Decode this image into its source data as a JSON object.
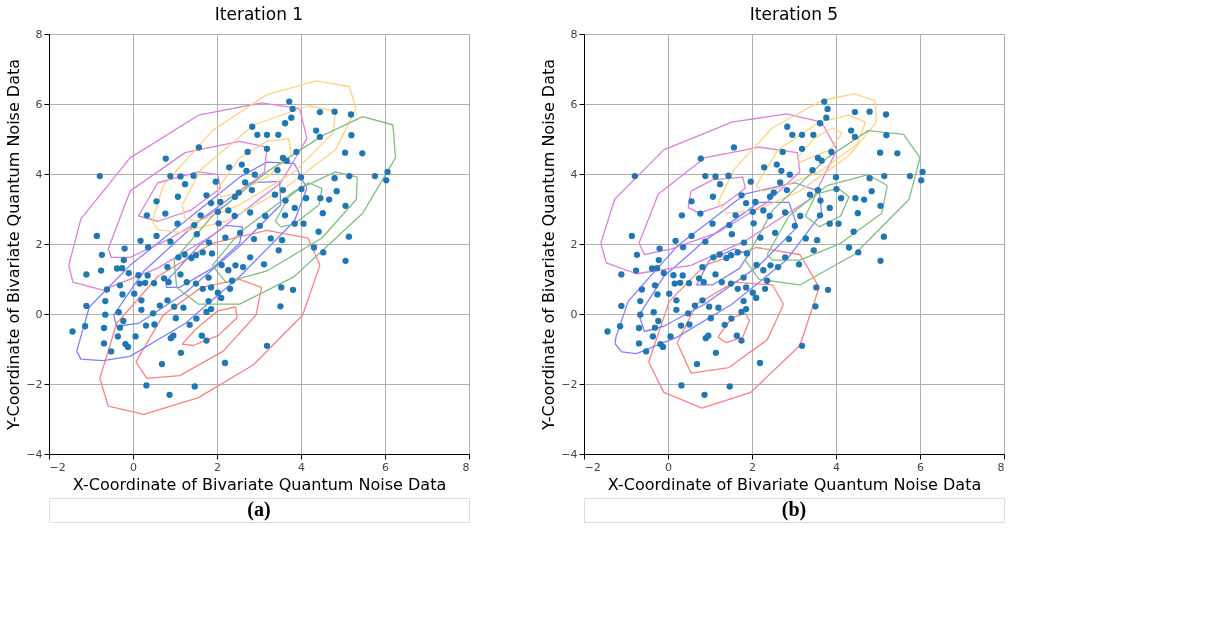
{
  "chart_data": [
    {
      "type": "line",
      "title": "Iteration 1",
      "xlabel": "X-Coordinate of Bivariate Quantum Noise Data",
      "ylabel": "Y-Coordinate of Bivariate Quantum Noise Data",
      "xlim": [
        -2,
        8
      ],
      "ylim": [
        -4,
        8
      ],
      "xticks": [
        -2,
        0,
        2,
        4,
        6,
        8
      ],
      "yticks": [
        -4,
        -2,
        0,
        2,
        4,
        6,
        8
      ],
      "grid": true,
      "annotations": [
        "(a)"
      ],
      "series": [
        {
          "color": "#ff8080",
          "x": [
            -0.79,
            -0.39,
            0.59,
            1.89,
            3.19,
            4.17,
            4.45
          ],
          "values": [
            -1.84,
            -0.27,
            1.07,
            2.02,
            2.39,
            2.17,
            1.39
          ]
        },
        {
          "color": "#ff8080",
          "x": [
            -0.79,
            -0.59,
            0.26,
            1.56,
            2.87,
            4.04,
            4.45
          ],
          "values": [
            -1.84,
            -2.63,
            -2.87,
            -2.39,
            -1.45,
            -0.03,
            1.39
          ]
        },
        {
          "color": "#ff8080",
          "x": [
            0.07,
            0.72,
            1.63,
            2.54,
            3.06
          ],
          "values": [
            -1.37,
            -0.03,
            0.76,
            0.99,
            0.76
          ]
        },
        {
          "color": "#ff8080",
          "x": [
            0.07,
            0.33,
            1.11,
            2.15,
            2.93,
            3.06
          ],
          "values": [
            -1.37,
            -1.84,
            -1.76,
            -1.06,
            -0.03,
            0.76
          ]
        },
        {
          "color": "#ff8080",
          "x": [
            1.17,
            1.5,
            2.02,
            2.44,
            2.48
          ],
          "values": [
            -0.86,
            -0.43,
            0.09,
            0.2,
            -0.11
          ]
        },
        {
          "color": "#ff8080",
          "x": [
            1.17,
            1.43,
            2.02,
            2.48
          ],
          "values": [
            -0.86,
            -0.9,
            -0.62,
            -0.11
          ]
        },
        {
          "color": "#8080ff",
          "x": [
            -1.34,
            -1.04,
            -0.07,
            1.24,
            2.54,
            3.19,
            3.84,
            4.14
          ],
          "values": [
            -1.06,
            0.2,
            1.39,
            2.65,
            3.91,
            4.34,
            4.3,
            3.59
          ]
        },
        {
          "color": "#8080ff",
          "x": [
            -1.34,
            -1.24,
            -0.72,
            -0.07,
            1.24,
            2.54,
            3.84,
            4.14
          ],
          "values": [
            -1.06,
            -1.29,
            -1.33,
            -1.21,
            -0.27,
            1.07,
            2.65,
            3.59
          ]
        },
        {
          "color": "#8080ff",
          "x": [
            -0.46,
            0.26,
            1.56,
            2.8,
            3.49,
            3.52
          ],
          "values": [
            -0.03,
            1.23,
            2.65,
            3.75,
            3.79,
            3.12
          ]
        },
        {
          "color": "#8080ff",
          "x": [
            -0.46,
            -0.39,
            0.13,
            1.24,
            2.54,
            3.52
          ],
          "values": [
            -0.03,
            -0.35,
            -0.27,
            0.6,
            1.94,
            3.12
          ]
        },
        {
          "color": "#8080ff",
          "x": [
            0.78,
            1.56,
            2.21,
            2.61
          ],
          "values": [
            0.91,
            1.94,
            2.53,
            2.49
          ]
        },
        {
          "color": "#8080ff",
          "x": [
            0.78,
            0.8,
            1.11,
            1.89,
            2.54,
            2.61
          ],
          "values": [
            0.91,
            0.76,
            0.76,
            1.31,
            2.02,
            2.49
          ]
        },
        {
          "color": "#dd80dd",
          "x": [
            -1.53,
            -1.24,
            -0.07,
            1.56,
            3.06,
            3.97,
            4.14
          ],
          "values": [
            1.39,
            2.72,
            4.46,
            5.68,
            6.03,
            5.87,
            5.01
          ]
        },
        {
          "color": "#dd80dd",
          "x": [
            -1.53,
            -1.43,
            -0.72,
            0.59,
            1.89,
            3.52,
            4.14
          ],
          "values": [
            1.39,
            0.91,
            0.68,
            1.31,
            2.25,
            3.75,
            5.01
          ]
        },
        {
          "color": "#dd80dd",
          "x": [
            -0.59,
            -0.07,
            1.24,
            2.54,
            3.19
          ],
          "values": [
            1.86,
            3.51,
            4.61,
            4.93,
            4.77
          ]
        },
        {
          "color": "#dd80dd",
          "x": [
            -0.59,
            -0.52,
            -0.07,
            0.91,
            2.21,
            3.13,
            3.19
          ],
          "values": [
            1.86,
            1.62,
            1.62,
            2.17,
            3.12,
            4.06,
            4.77
          ]
        },
        {
          "color": "#dd80dd",
          "x": [
            0.13,
            0.59,
            1.56,
            2.02,
            2.08
          ],
          "values": [
            2.8,
            3.75,
            4.06,
            3.98,
            3.59
          ]
        },
        {
          "color": "#dd80dd",
          "x": [
            0.13,
            0.59,
            1.37,
            2.08
          ],
          "values": [
            2.8,
            2.65,
            2.96,
            3.59
          ]
        },
        {
          "color": "#ffd280",
          "x": [
            0.46,
            0.72,
            1.89,
            3.19,
            4.36,
            5.15,
            5.31
          ],
          "values": [
            2.65,
            3.67,
            5.24,
            6.27,
            6.66,
            6.5,
            5.87
          ]
        },
        {
          "color": "#ffd280",
          "x": [
            0.46,
            0.59,
            1.11,
            2.21,
            3.52,
            4.82,
            5.31
          ],
          "values": [
            2.65,
            2.41,
            2.33,
            2.65,
            3.51,
            4.69,
            5.87
          ]
        },
        {
          "color": "#ffd280",
          "x": [
            1.17,
            1.63,
            2.87,
            4.17,
            4.82
          ],
          "values": [
            3.12,
            4.14,
            5.4,
            5.95,
            5.8
          ]
        },
        {
          "color": "#ffd280",
          "x": [
            1.17,
            1.24,
            1.56,
            2.54,
            3.84,
            4.76,
            4.82
          ],
          "values": [
            3.12,
            2.72,
            2.65,
            3.12,
            4.06,
            5.17,
            5.8
          ]
        },
        {
          "color": "#ffd280",
          "x": [
            2.02,
            2.54,
            3.19,
            3.71,
            3.77
          ],
          "values": [
            3.59,
            4.46,
            4.93,
            5.01,
            4.54
          ]
        },
        {
          "color": "#ffd280",
          "x": [
            2.02,
            2.08,
            2.41,
            3.19,
            3.77
          ],
          "values": [
            3.59,
            3.35,
            3.43,
            3.91,
            4.54
          ]
        },
        {
          "color": "#80bf80",
          "x": [
            0.98,
            1.89,
            3.19,
            4.5,
            5.47,
            6.19,
            6.25
          ],
          "values": [
            1.54,
            2.8,
            4.06,
            5.09,
            5.64,
            5.4,
            4.46
          ]
        },
        {
          "color": "#80bf80",
          "x": [
            0.98,
            1.04,
            1.56,
            2.54,
            3.84,
            5.47,
            6.25
          ],
          "values": [
            1.54,
            0.76,
            0.28,
            0.28,
            1.07,
            2.88,
            4.46
          ]
        },
        {
          "color": "#80bf80",
          "x": [
            1.89,
            2.54,
            3.84,
            4.82,
            5.34
          ],
          "values": [
            1.39,
            2.33,
            3.51,
            4.06,
            3.91
          ]
        },
        {
          "color": "#80bf80",
          "x": [
            1.89,
            2.21,
            3.19,
            4.5,
            5.32,
            5.34
          ],
          "values": [
            1.39,
            0.91,
            1.23,
            2.17,
            3.28,
            3.91
          ]
        },
        {
          "color": "#80bf80",
          "x": [
            3.39,
            3.71,
            4.17,
            4.5
          ],
          "values": [
            2.65,
            3.35,
            3.75,
            3.59
          ]
        },
        {
          "color": "#80bf80",
          "x": [
            3.39,
            3.52,
            3.84,
            4.43,
            4.5
          ],
          "values": [
            2.65,
            2.49,
            2.57,
            3.12,
            3.59
          ]
        },
        {
          "type": "scatter",
          "color": "#1f77b4",
          "x": [
            3.72,
            3.8,
            3.77,
            3.62,
            4.45,
            4.8,
            5.19,
            2.84,
            2.96,
            3.19,
            3.46,
            4.36,
            4.45,
            5.2,
            1.57,
            0.78,
            2.73,
            3.19,
            3.89,
            5.05,
            5.46,
            -0.79,
            0.89,
            1.13,
            1.44,
            1.24,
            1.97,
            2.29,
            2.59,
            2.7,
            2.9,
            3.44,
            3.57,
            3.66,
            4.0,
            4.8,
            5.15,
            5.76,
            6.06,
            6.03,
            1.07,
            0.56,
            1.75,
            2.67,
            2.83,
            2.43,
            2.52,
            3.57,
            3.63,
            4.01,
            4.12,
            4.46,
            4.67,
            4.85,
            5.06,
            1.86,
            2.08,
            0.33,
            0.77,
            1.61,
            2.02,
            2.27,
            2.79,
            3.15,
            3.62,
            3.85,
            4.52,
            1.06,
            1.46,
            2.04,
            2.42,
            3.02,
            3.38,
            3.85,
            4.06,
            4.42,
            5.14,
            -0.86,
            0.18,
            0.89,
            0.56,
            1.52,
            1.81,
            2.2,
            2.55,
            2.88,
            3.28,
            3.55,
            4.31,
            4.53,
            5.06,
            -0.74,
            -0.2,
            0.36,
            -0.22,
            -0.76,
            -1.11,
            -0.38,
            -0.26,
            -0.1,
            0.13,
            0.35,
            0.82,
            1.08,
            1.23,
            1.39,
            1.5,
            1.66,
            1.88,
            2.11,
            2.27,
            2.44,
            2.62,
            2.79,
            3.12,
            3.47,
            -0.62,
            -0.31,
            0.16,
            0.29,
            0.5,
            0.74,
            0.85,
            1.13,
            1.28,
            1.5,
            1.8,
            1.66,
            1.86,
            2.31,
            2.36,
            3.53,
            3.81,
            -0.66,
            -0.25,
            0.03,
            0.2,
            0.64,
            0.82,
            0.98,
            1.2,
            1.8,
            2.02,
            2.1,
            -1.11,
            -0.66,
            -0.34,
            0.2,
            0.48,
            1.02,
            1.51,
            1.75,
            1.86,
            3.51,
            -1.14,
            -0.69,
            -0.31,
            -0.23,
            0.31,
            0.51,
            1.35,
            -1.44,
            -0.36,
            0.06,
            0.9,
            0.96,
            1.64,
            1.75,
            -0.69,
            -0.52,
            -0.18,
            -0.12,
            1.14,
            3.19,
            0.69,
            2.19,
            0.32,
            1.47,
            0.87
          ],
          "values": [
            6.07,
            5.86,
            5.61,
            5.45,
            5.77,
            5.78,
            5.7,
            5.35,
            5.12,
            5.12,
            5.12,
            5.24,
            5.06,
            5.11,
            4.76,
            4.44,
            4.63,
            4.72,
            4.63,
            4.61,
            4.59,
            3.94,
            3.94,
            3.93,
            3.95,
            3.71,
            3.78,
            4.19,
            4.27,
            4.09,
            3.98,
            4.11,
            4.46,
            4.38,
            3.91,
            3.88,
            3.94,
            3.94,
            4.06,
            3.82,
            3.35,
            3.22,
            3.39,
            3.76,
            3.54,
            3.35,
            3.47,
            3.54,
            3.24,
            3.57,
            3.31,
            3.31,
            3.27,
            3.51,
            3.09,
            3.17,
            3.2,
            2.82,
            2.87,
            2.82,
            2.92,
            2.96,
            2.9,
            2.8,
            2.82,
            3.03,
            2.88,
            2.58,
            2.54,
            2.59,
            2.8,
            2.52,
            3.41,
            2.58,
            2.58,
            2.35,
            2.21,
            2.23,
            2.09,
            2.07,
            2.23,
            2.28,
            2.04,
            2.18,
            2.32,
            2.14,
            2.16,
            2.11,
            1.9,
            1.76,
            1.52,
            1.69,
            1.87,
            1.91,
            1.54,
            1.24,
            1.13,
            1.3,
            1.31,
            1.17,
            1.11,
            1.1,
            1.34,
            1.62,
            1.7,
            1.6,
            1.68,
            1.76,
            1.73,
            1.4,
            1.25,
            1.39,
            1.34,
            1.62,
            1.42,
            1.82,
            0.7,
            0.82,
            0.87,
            0.89,
            0.88,
            1.02,
            0.91,
            1.13,
            0.91,
            0.87,
            1.04,
            0.72,
            0.76,
            0.72,
            0.95,
            0.76,
            0.69,
            0.37,
            0.56,
            0.58,
            0.39,
            0.24,
            0.39,
            0.21,
            0.18,
            0.37,
            0.61,
            0.46,
            0.23,
            -0.02,
            0.05,
            0.12,
            0.02,
            -0.12,
            -0.13,
            0.06,
            0.14,
            0.22,
            -0.35,
            -0.4,
            -0.39,
            -0.2,
            -0.33,
            -0.3,
            -0.31,
            -0.5,
            -0.64,
            -0.64,
            -0.69,
            -0.62,
            -0.62,
            -0.76,
            -0.84,
            -1.07,
            -0.86,
            -0.94,
            -1.11,
            -0.91,
            -1.43,
            -1.4,
            -2.04,
            -2.07,
            -2.31
          ]
        }
      ]
    },
    {
      "type": "line",
      "title": "Iteration 5",
      "xlabel": "X-Coordinate of Bivariate Quantum Noise Data",
      "ylabel": "Y-Coordinate of Bivariate Quantum Noise Data",
      "xlim": [
        -2,
        8
      ],
      "ylim": [
        -4,
        8
      ],
      "xticks": [
        -2,
        0,
        2,
        4,
        6,
        8
      ],
      "yticks": [
        -4,
        -2,
        0,
        2,
        4,
        6,
        8
      ],
      "grid": true,
      "annotations": [
        "(b)"
      ],
      "series": [
        {
          "color": "#ff8080",
          "x": [
            -0.46,
            0.03,
            0.87,
            2.1,
            3.14,
            3.6
          ],
          "values": [
            -1.37,
            0.36,
            1.39,
            1.9,
            1.7,
            0.76
          ]
        },
        {
          "color": "#ff8080",
          "x": [
            -0.46,
            -0.1,
            0.81,
            1.97,
            3.14,
            3.6
          ],
          "values": [
            -1.37,
            -2.24,
            -2.69,
            -2.24,
            -0.9,
            0.76
          ]
        },
        {
          "color": "#ff8080",
          "x": [
            0.22,
            0.68,
            1.58,
            2.49,
            2.75
          ],
          "values": [
            -0.82,
            0.28,
            0.91,
            0.83,
            0.28
          ]
        },
        {
          "color": "#ff8080",
          "x": [
            0.22,
            0.55,
            1.45,
            2.36,
            2.75
          ],
          "values": [
            -0.82,
            -1.69,
            -1.53,
            -0.74,
            0.28
          ]
        },
        {
          "color": "#ff8080",
          "x": [
            1.19,
            1.52,
            1.84,
            1.94
          ],
          "values": [
            -0.66,
            -0.11,
            0.02,
            -0.19
          ]
        },
        {
          "color": "#ff8080",
          "x": [
            1.19,
            1.39,
            1.78,
            1.94
          ],
          "values": [
            -0.66,
            -0.82,
            -0.66,
            -0.19
          ]
        },
        {
          "color": "#8080ff",
          "x": [
            -1.26,
            -1.24,
            -0.95,
            0.22,
            1.84,
            3.01,
            3.6,
            3.66
          ],
          "values": [
            -0.85,
            -0.66,
            0.36,
            1.94,
            3.43,
            3.75,
            3.51,
            2.88
          ]
        },
        {
          "color": "#8080ff",
          "x": [
            -1.26,
            -1.1,
            -0.75,
            0.22,
            1.52,
            2.82,
            3.66
          ],
          "values": [
            -0.85,
            -1.08,
            -1.13,
            -0.66,
            0.28,
            1.54,
            2.88
          ]
        },
        {
          "color": "#8080ff",
          "x": [
            -0.69,
            -0.1,
            0.87,
            2.17,
            2.88,
            3.08
          ],
          "values": [
            -0.03,
            1.07,
            2.09,
            3.19,
            3.19,
            2.49
          ]
        },
        {
          "color": "#8080ff",
          "x": [
            -0.69,
            -0.56,
            -0.1,
            0.87,
            2.17,
            3.08
          ],
          "values": [
            -0.03,
            -0.5,
            -0.35,
            0.28,
            1.39,
            2.49
          ]
        },
        {
          "color": "#8080ff",
          "x": [
            0.68,
            0.99,
            1.58,
            1.91
          ],
          "values": [
            0.83,
            1.54,
            1.86,
            1.7
          ]
        },
        {
          "color": "#8080ff",
          "x": [
            0.68,
            1.06,
            1.71,
            1.91
          ],
          "values": [
            0.83,
            0.83,
            1.31,
            1.7
          ]
        },
        {
          "color": "#dd80dd",
          "x": [
            -1.6,
            -1.27,
            -0.1,
            1.52,
            2.82,
            3.66,
            4.02
          ],
          "values": [
            2.02,
            3.28,
            4.69,
            5.48,
            5.72,
            5.48,
            4.69
          ]
        },
        {
          "color": "#dd80dd",
          "x": [
            -1.6,
            -1.47,
            -0.75,
            0.55,
            1.84,
            3.47,
            4.02
          ],
          "values": [
            2.02,
            1.46,
            1.15,
            1.39,
            2.09,
            3.35,
            4.69
          ]
        },
        {
          "color": "#dd80dd",
          "x": [
            -0.69,
            -0.23,
            0.87,
            2.17,
            3.08,
            3.14
          ],
          "values": [
            2.02,
            3.43,
            4.46,
            4.77,
            4.61,
            4.06
          ]
        },
        {
          "color": "#dd80dd",
          "x": [
            -0.69,
            -0.56,
            0.09,
            1.19,
            2.36,
            3.14
          ],
          "values": [
            2.02,
            1.7,
            1.86,
            2.33,
            3.19,
            4.06
          ]
        },
        {
          "color": "#dd80dd",
          "x": [
            0.48,
            0.55,
            1.06,
            1.78,
            1.84
          ],
          "values": [
            3.04,
            3.51,
            3.83,
            3.91,
            3.59
          ]
        },
        {
          "color": "#dd80dd",
          "x": [
            0.48,
            0.74,
            1.32,
            1.84
          ],
          "values": [
            3.04,
            2.88,
            3.12,
            3.59
          ]
        },
        {
          "color": "#ffd280",
          "x": [
            1.19,
            1.58,
            2.49,
            3.66,
            4.44,
            4.93,
            4.96
          ],
          "values": [
            3.19,
            4.14,
            5.32,
            6.1,
            6.29,
            6.1,
            5.48
          ]
        },
        {
          "color": "#ffd280",
          "x": [
            1.19,
            1.39,
            2.1,
            3.14,
            4.31,
            4.96
          ],
          "values": [
            3.19,
            2.88,
            2.96,
            3.51,
            4.53,
            5.48
          ]
        },
        {
          "color": "#ffd280",
          "x": [
            2.1,
            2.62,
            3.6,
            4.31,
            4.7
          ],
          "values": [
            3.67,
            4.69,
            5.48,
            5.68,
            5.48
          ]
        },
        {
          "color": "#ffd280",
          "x": [
            2.1,
            2.23,
            2.62,
            3.6,
            4.5,
            4.7
          ],
          "values": [
            3.67,
            3.51,
            3.59,
            4.06,
            4.85,
            5.48
          ]
        },
        {
          "color": "#ffd280",
          "x": [
            3.08,
            3.47,
            3.92,
            4.14
          ],
          "values": [
            4.46,
            5.01,
            5.32,
            5.17
          ]
        },
        {
          "color": "#ffd280",
          "x": [
            3.08,
            3.14,
            3.86,
            4.14
          ],
          "values": [
            4.46,
            4.34,
            4.69,
            5.17
          ]
        },
        {
          "color": "#80bf80",
          "x": [
            1.84,
            2.49,
            3.79,
            4.77,
            5.61,
            6.0
          ],
          "values": [
            1.54,
            2.96,
            4.46,
            5.24,
            5.13,
            4.46
          ]
        },
        {
          "color": "#80bf80",
          "x": [
            1.84,
            2.17,
            3.14,
            4.44,
            5.74,
            6.0
          ],
          "values": [
            1.54,
            0.99,
            0.83,
            1.7,
            3.28,
            4.46
          ]
        },
        {
          "color": "#80bf80",
          "x": [
            2.36,
            2.88,
            3.79,
            4.77,
            5.22
          ],
          "values": [
            1.7,
            2.8,
            3.67,
            3.98,
            3.67
          ]
        },
        {
          "color": "#80bf80",
          "x": [
            2.36,
            2.49,
            3.14,
            4.11,
            5.09,
            5.22
          ],
          "values": [
            1.7,
            1.54,
            1.54,
            2.02,
            2.88,
            3.67
          ]
        },
        {
          "color": "#80bf80",
          "x": [
            3.27,
            3.53,
            4.05,
            4.31
          ],
          "values": [
            2.8,
            3.43,
            3.59,
            3.35
          ]
        },
        {
          "color": "#80bf80",
          "x": [
            3.27,
            3.6,
            4.11,
            4.31
          ],
          "values": [
            2.8,
            2.49,
            2.8,
            3.35
          ]
        },
        {
          "type": "scatter",
          "color": "#1f77b4",
          "x": [
            3.72,
            3.8,
            3.77,
            3.62,
            4.45,
            4.8,
            5.19,
            2.84,
            2.96,
            3.19,
            3.46,
            4.36,
            4.45,
            5.2,
            1.57,
            0.78,
            2.73,
            3.19,
            3.89,
            5.05,
            5.46,
            -0.79,
            0.89,
            1.13,
            1.44,
            1.24,
            1.97,
            2.29,
            2.59,
            2.7,
            2.9,
            3.44,
            3.57,
            3.66,
            4.0,
            4.8,
            5.15,
            5.76,
            6.06,
            6.03,
            1.07,
            0.56,
            1.75,
            2.67,
            2.83,
            2.43,
            2.52,
            3.57,
            3.63,
            4.01,
            4.12,
            4.46,
            4.67,
            4.85,
            5.06,
            1.86,
            2.08,
            0.33,
            0.77,
            1.61,
            2.02,
            2.27,
            2.79,
            3.15,
            3.62,
            3.85,
            4.52,
            1.06,
            1.46,
            2.04,
            2.42,
            3.02,
            3.38,
            3.85,
            4.06,
            4.42,
            5.14,
            -0.86,
            0.18,
            0.89,
            0.56,
            1.52,
            1.81,
            2.2,
            2.55,
            2.88,
            3.28,
            3.55,
            4.31,
            4.53,
            5.06,
            -0.74,
            -0.2,
            0.36,
            -0.22,
            -0.76,
            -1.11,
            -0.38,
            -0.26,
            -0.1,
            0.13,
            0.35,
            0.82,
            1.08,
            1.23,
            1.39,
            1.5,
            1.66,
            1.88,
            2.11,
            2.27,
            2.44,
            2.62,
            2.79,
            3.12,
            3.47,
            -0.62,
            -0.31,
            0.16,
            0.29,
            0.5,
            0.74,
            0.85,
            1.13,
            1.28,
            1.5,
            1.8,
            1.66,
            1.86,
            2.31,
            2.36,
            3.53,
            3.81,
            -0.66,
            -0.25,
            0.03,
            0.2,
            0.64,
            0.82,
            0.98,
            1.2,
            1.8,
            2.02,
            2.1,
            -1.11,
            -0.66,
            -0.34,
            0.2,
            0.48,
            1.02,
            1.51,
            1.75,
            1.86,
            3.51,
            -1.14,
            -0.69,
            -0.31,
            -0.23,
            0.31,
            0.51,
            1.35,
            -1.44,
            -0.36,
            0.06,
            0.9,
            0.96,
            1.64,
            1.75,
            -0.69,
            -0.52,
            -0.18,
            -0.12,
            1.14,
            3.19,
            0.69,
            2.19,
            0.32,
            1.47,
            0.87
          ],
          "values": [
            6.07,
            5.86,
            5.61,
            5.45,
            5.77,
            5.78,
            5.7,
            5.35,
            5.12,
            5.12,
            5.12,
            5.24,
            5.06,
            5.11,
            4.76,
            4.44,
            4.63,
            4.72,
            4.63,
            4.61,
            4.59,
            3.94,
            3.94,
            3.93,
            3.95,
            3.71,
            3.78,
            4.19,
            4.27,
            4.09,
            3.98,
            4.11,
            4.46,
            4.38,
            3.91,
            3.88,
            3.94,
            3.94,
            4.06,
            3.82,
            3.35,
            3.22,
            3.39,
            3.76,
            3.54,
            3.35,
            3.47,
            3.54,
            3.24,
            3.57,
            3.31,
            3.31,
            3.27,
            3.51,
            3.09,
            3.17,
            3.2,
            2.82,
            2.87,
            2.82,
            2.92,
            2.96,
            2.9,
            2.8,
            2.82,
            3.03,
            2.88,
            2.58,
            2.54,
            2.59,
            2.8,
            2.52,
            3.41,
            2.58,
            2.58,
            2.35,
            2.21,
            2.23,
            2.09,
            2.07,
            2.23,
            2.28,
            2.04,
            2.18,
            2.32,
            2.14,
            2.16,
            2.11,
            1.9,
            1.76,
            1.52,
            1.69,
            1.87,
            1.91,
            1.54,
            1.24,
            1.13,
            1.3,
            1.31,
            1.17,
            1.11,
            1.1,
            1.34,
            1.62,
            1.7,
            1.6,
            1.68,
            1.76,
            1.73,
            1.4,
            1.25,
            1.39,
            1.34,
            1.62,
            1.42,
            1.82,
            0.7,
            0.82,
            0.87,
            0.89,
            0.88,
            1.02,
            0.91,
            1.13,
            0.91,
            0.87,
            1.04,
            0.72,
            0.76,
            0.72,
            0.95,
            0.76,
            0.69,
            0.37,
            0.56,
            0.58,
            0.39,
            0.24,
            0.39,
            0.21,
            0.18,
            0.37,
            0.61,
            0.46,
            0.23,
            -0.02,
            0.05,
            0.12,
            0.02,
            -0.12,
            -0.13,
            0.06,
            0.14,
            0.22,
            -0.35,
            -0.4,
            -0.39,
            -0.2,
            -0.33,
            -0.3,
            -0.31,
            -0.5,
            -0.64,
            -0.64,
            -0.69,
            -0.62,
            -0.62,
            -0.76,
            -0.84,
            -1.07,
            -0.86,
            -0.94,
            -1.11,
            -0.91,
            -1.43,
            -1.4,
            -2.04,
            -2.07,
            -2.31
          ]
        }
      ]
    }
  ]
}
